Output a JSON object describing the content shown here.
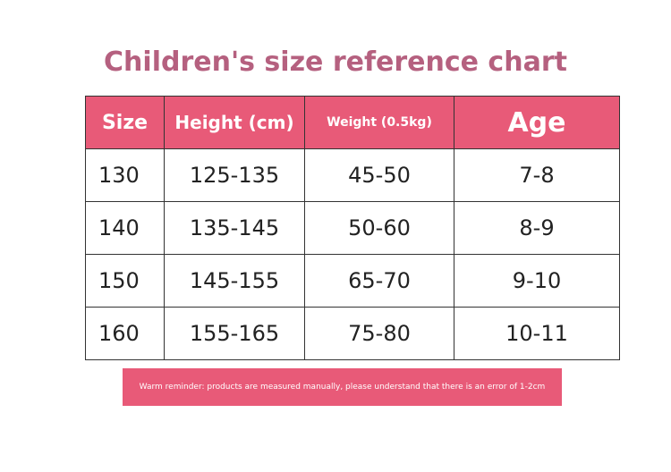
{
  "title": "Children's size reference chart",
  "table": {
    "header": [
      "Size",
      "Height (cm)",
      "Weight (0.5kg)",
      "Age"
    ],
    "rows": [
      [
        "130",
        "125-135",
        "45-50",
        "7-8"
      ],
      [
        "140",
        "135-145",
        "50-60",
        "8-9"
      ],
      [
        "150",
        "145-155",
        "65-70",
        "9-10"
      ],
      [
        "160",
        "155-165",
        "75-80",
        "10-11"
      ]
    ]
  },
  "note": "Warm reminder: products are measured manually, please understand that there is an error of 1-2cm"
}
